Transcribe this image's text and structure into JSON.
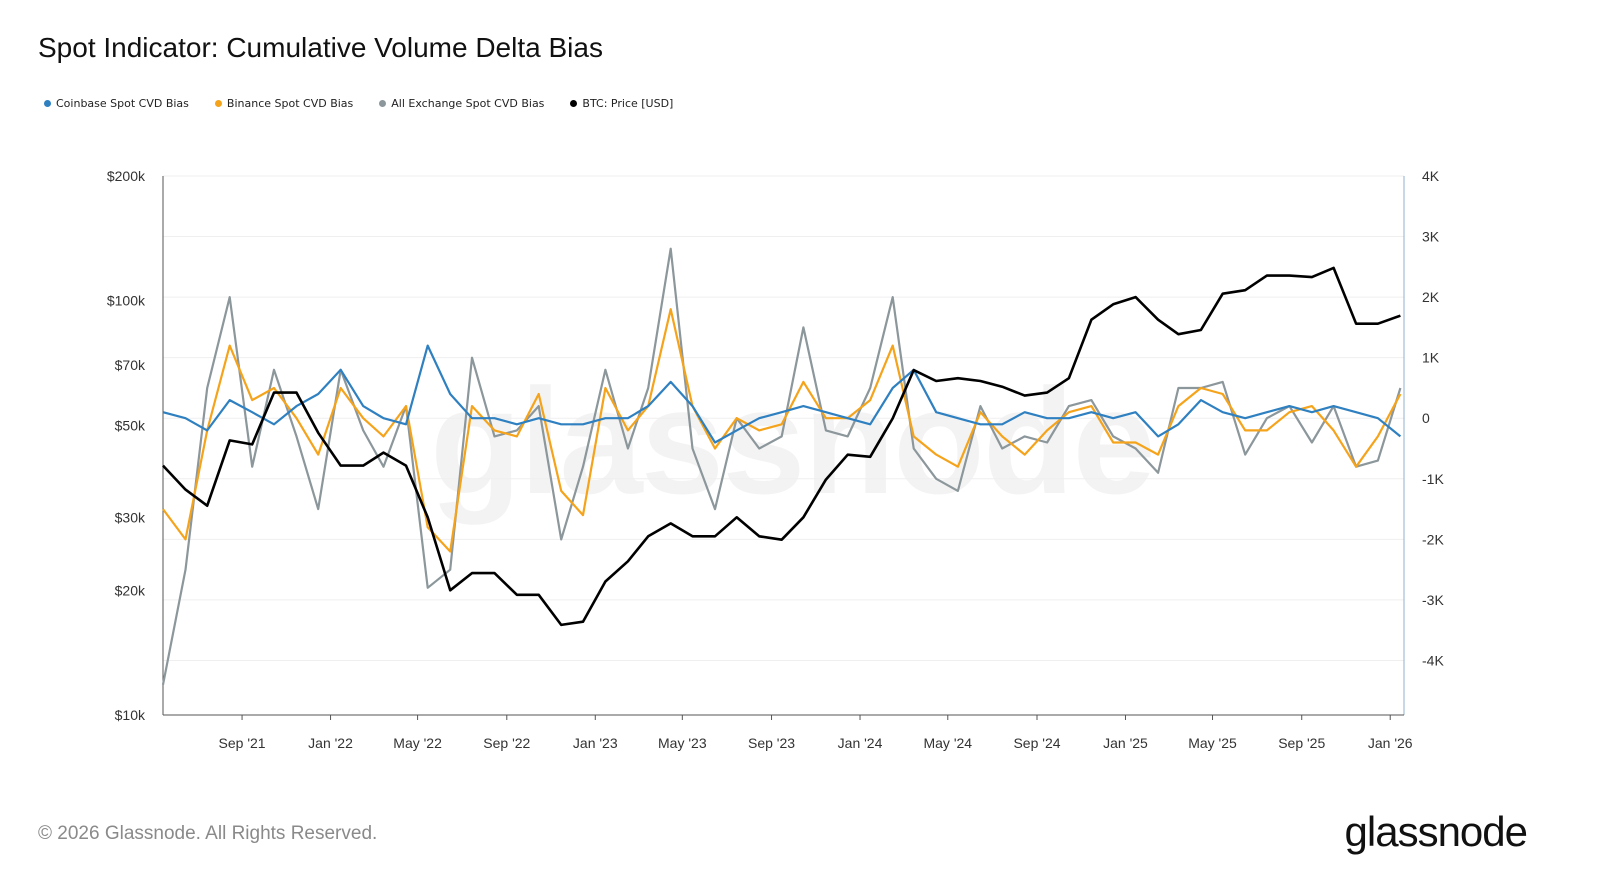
{
  "title": "Spot Indicator: Cumulative Volume Delta Bias",
  "footer": "© 2026 Glassnode. All Rights Reserved.",
  "logo_text": "glassnode",
  "chart_data": {
    "type": "line",
    "title": "Spot Indicator: Cumulative Volume Delta Bias",
    "legend_position": "top-left",
    "grid": true,
    "x": [
      "2021-05-15",
      "2021-06-15",
      "2021-07-15",
      "2021-08-15",
      "2021-09-15",
      "2021-10-15",
      "2021-11-15",
      "2021-12-15",
      "2022-01-15",
      "2022-02-15",
      "2022-03-15",
      "2022-04-15",
      "2022-05-15",
      "2022-06-15",
      "2022-07-15",
      "2022-08-15",
      "2022-09-15",
      "2022-10-15",
      "2022-11-15",
      "2022-12-15",
      "2023-01-15",
      "2023-02-15",
      "2023-03-15",
      "2023-04-15",
      "2023-05-15",
      "2023-06-15",
      "2023-07-15",
      "2023-08-15",
      "2023-09-15",
      "2023-10-15",
      "2023-11-15",
      "2023-12-15",
      "2024-01-15",
      "2024-02-15",
      "2024-03-15",
      "2024-04-15",
      "2024-05-15",
      "2024-06-15",
      "2024-07-15",
      "2024-08-15",
      "2024-09-15",
      "2024-10-15",
      "2024-11-15",
      "2024-12-15",
      "2025-01-15",
      "2025-02-15",
      "2025-03-15",
      "2025-04-15",
      "2025-05-15",
      "2025-06-15",
      "2025-07-15",
      "2025-08-15",
      "2025-09-15",
      "2025-10-15",
      "2025-11-15",
      "2025-12-15",
      "2026-01-15"
    ],
    "x_ticks": [
      "Sep '21",
      "Jan '22",
      "May '22",
      "Sep '22",
      "Jan '23",
      "May '23",
      "Sep '23",
      "Jan '24",
      "May '24",
      "Sep '24",
      "Jan '25",
      "May '25",
      "Sep '25",
      "Jan '26"
    ],
    "x_tick_dates": [
      "2021-09-01",
      "2022-01-01",
      "2022-05-01",
      "2022-09-01",
      "2023-01-01",
      "2023-05-01",
      "2023-09-01",
      "2024-01-01",
      "2024-05-01",
      "2024-09-01",
      "2025-01-01",
      "2025-05-01",
      "2025-09-01",
      "2026-01-01"
    ],
    "xlim": [
      "2021-05-15",
      "2026-01-20"
    ],
    "y_left": {
      "scale": "log",
      "lim": [
        10000,
        200000
      ],
      "ticks": [
        10000,
        20000,
        30000,
        50000,
        70000,
        100000,
        200000
      ],
      "tick_labels": [
        "$10k",
        "$20k",
        "$30k",
        "$50k",
        "$70k",
        "$100k",
        "$200k"
      ]
    },
    "y_right": {
      "scale": "linear",
      "lim": [
        -4900,
        4000
      ],
      "ticks": [
        -4000,
        -3000,
        -2000,
        -1000,
        0,
        1000,
        2000,
        3000,
        4000
      ],
      "tick_labels": [
        "-4K",
        "-3K",
        "-2K",
        "-1K",
        "0",
        "1K",
        "2K",
        "3K",
        "4K"
      ]
    },
    "series": [
      {
        "name": "Coinbase Spot CVD Bias",
        "color": "#2f80c0",
        "axis": "right",
        "values": [
          100,
          0,
          -200,
          300,
          100,
          -100,
          200,
          400,
          800,
          200,
          0,
          -100,
          1200,
          400,
          0,
          0,
          -100,
          0,
          -100,
          -100,
          0,
          0,
          200,
          600,
          200,
          -400,
          -200,
          0,
          100,
          200,
          100,
          0,
          -100,
          500,
          800,
          100,
          0,
          -100,
          -100,
          100,
          0,
          0,
          100,
          0,
          100,
          -300,
          -100,
          300,
          100,
          0,
          100,
          200,
          100,
          200,
          100,
          0,
          -300
        ]
      },
      {
        "name": "Binance Spot CVD Bias",
        "color": "#f5a31a",
        "axis": "right",
        "values": [
          -1500,
          -2000,
          -200,
          1200,
          300,
          500,
          0,
          -600,
          500,
          0,
          -300,
          200,
          -1800,
          -2200,
          200,
          -200,
          -300,
          400,
          -1200,
          -1600,
          500,
          -200,
          200,
          1800,
          200,
          -500,
          0,
          -200,
          -100,
          600,
          0,
          0,
          300,
          1200,
          -300,
          -600,
          -800,
          100,
          -300,
          -600,
          -200,
          100,
          200,
          -400,
          -400,
          -600,
          200,
          500,
          400,
          -200,
          -200,
          100,
          200,
          -200,
          -800,
          -300,
          400
        ]
      },
      {
        "name": "All Exchange Spot CVD Bias",
        "color": "#8c979c",
        "axis": "right",
        "values": [
          -4400,
          -2500,
          500,
          2000,
          -800,
          800,
          -300,
          -1500,
          800,
          -200,
          -800,
          200,
          -2800,
          -2500,
          1000,
          -300,
          -200,
          200,
          -2000,
          -800,
          800,
          -500,
          500,
          2800,
          -500,
          -1500,
          0,
          -500,
          -300,
          1500,
          -200,
          -300,
          500,
          2000,
          -500,
          -1000,
          -1200,
          200,
          -500,
          -300,
          -400,
          200,
          300,
          -300,
          -500,
          -900,
          500,
          500,
          600,
          -600,
          0,
          200,
          -400,
          200,
          -800,
          -700,
          500
        ]
      },
      {
        "name": "BTC: Price [USD]",
        "color": "#000000",
        "axis": "left",
        "values": [
          40000,
          35000,
          32000,
          46000,
          45000,
          60000,
          60000,
          48000,
          40000,
          40000,
          43000,
          40000,
          30000,
          20000,
          22000,
          22000,
          19500,
          19500,
          16500,
          16800,
          21000,
          23500,
          27000,
          29000,
          27000,
          27000,
          30000,
          27000,
          26500,
          30000,
          37000,
          42500,
          42000,
          52000,
          68000,
          64000,
          65000,
          64000,
          62000,
          59000,
          60000,
          65000,
          90000,
          98000,
          102000,
          90000,
          83000,
          85000,
          104000,
          106000,
          115000,
          115000,
          114000,
          120000,
          88000,
          88000,
          92000
        ]
      }
    ]
  }
}
